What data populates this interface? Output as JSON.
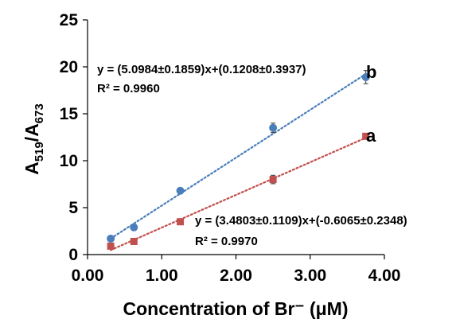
{
  "chart_data": {
    "type": "scatter",
    "xlabel": "Concentration of Br⁻ (μM)",
    "ylabel": {
      "main": "A",
      "sub1": "519",
      "slash": "/A",
      "sub2": "673"
    },
    "xlim": [
      0,
      4
    ],
    "ylim": [
      0,
      25
    ],
    "x_ticks": [
      "0.00",
      "1.00",
      "2.00",
      "3.00",
      "4.00"
    ],
    "y_ticks": [
      "0",
      "5",
      "10",
      "15",
      "20",
      "25"
    ],
    "grid": false,
    "series": [
      {
        "name": "b",
        "color": "#4a7ebb",
        "marker": "circle",
        "x": [
          0.3125,
          0.625,
          1.25,
          2.5,
          3.75
        ],
        "y": [
          1.7,
          2.9,
          6.8,
          13.5,
          18.9
        ],
        "error": [
          0.15,
          0.2,
          0.2,
          0.5,
          0.7
        ],
        "fit": {
          "slope": 5.0984,
          "intercept": 0.1208,
          "x_range": [
            0.3125,
            3.75
          ]
        },
        "equation": "y = (5.0984±0.1859)x+(0.1208±0.3937)",
        "r2": "R² = 0.9960"
      },
      {
        "name": "a",
        "color": "#c0504d",
        "marker": "square",
        "x": [
          0.3125,
          0.625,
          1.25,
          2.5,
          3.75
        ],
        "y": [
          0.9,
          1.4,
          3.5,
          8.0,
          12.6
        ],
        "error": [
          0.15,
          0.15,
          0.2,
          0.45,
          0.2
        ],
        "fit": {
          "slope": 3.4803,
          "intercept": -0.6065,
          "x_range": [
            0.3125,
            3.75
          ]
        },
        "equation": "y = (3.4803±0.1109)x+(-0.6065±0.2348)",
        "r2": "R² = 0.9970"
      }
    ]
  }
}
